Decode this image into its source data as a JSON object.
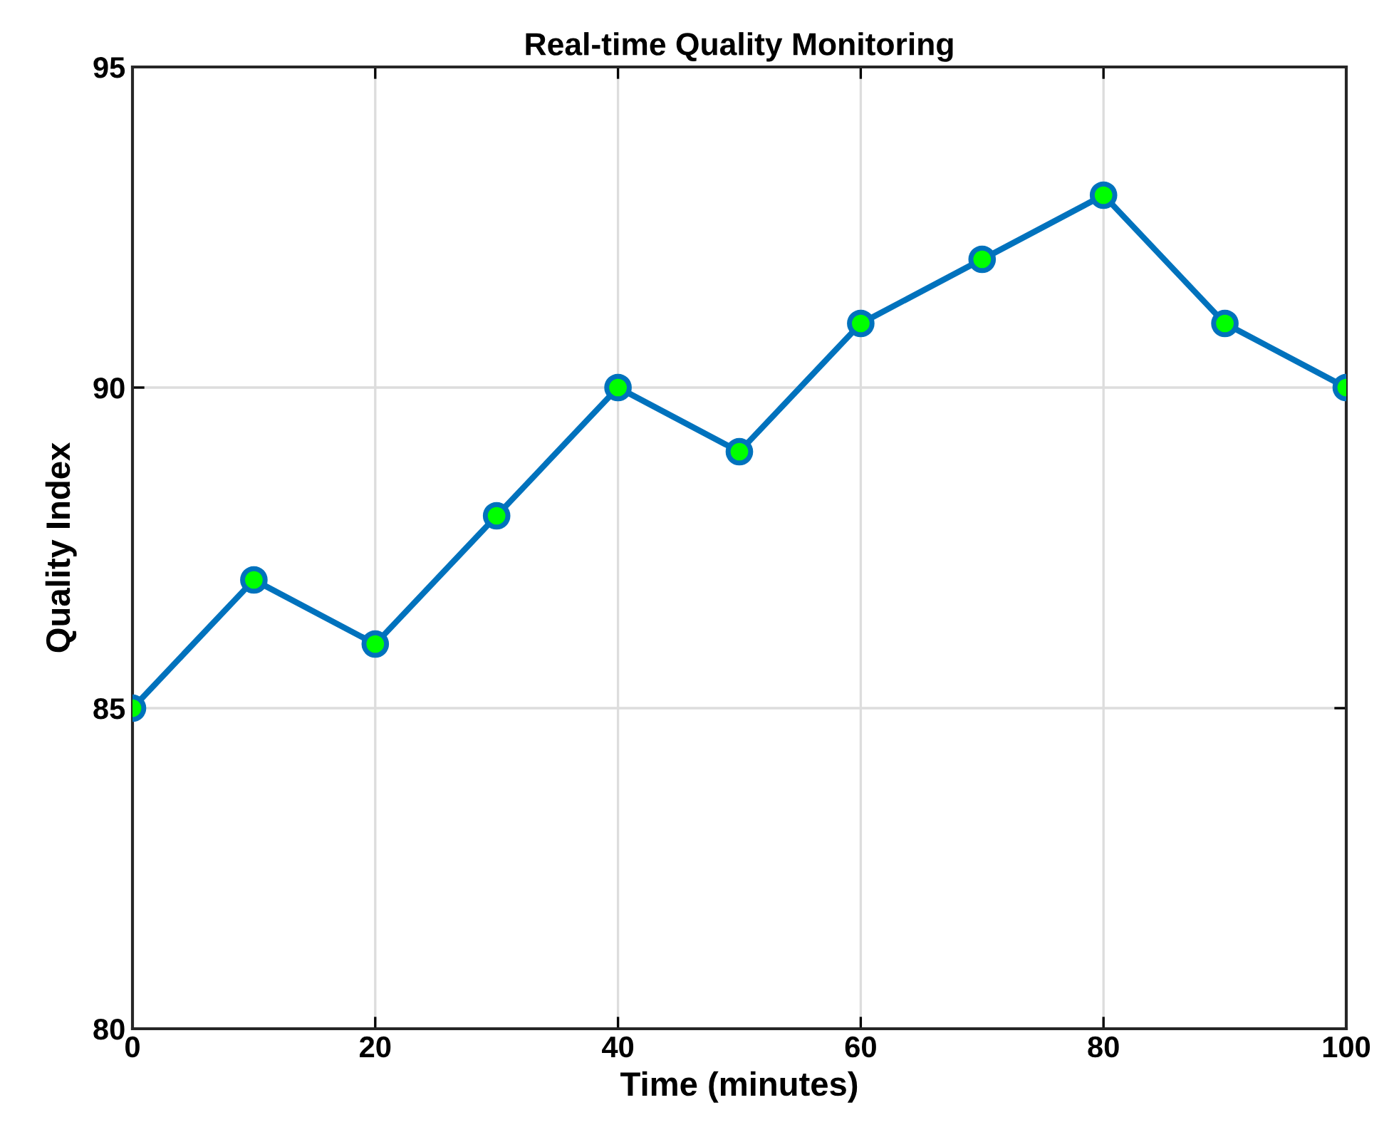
{
  "chart_data": {
    "type": "line",
    "title": "Real-time Quality Monitoring",
    "xlabel": "Time (minutes)",
    "ylabel": "Quality Index",
    "x": [
      0,
      10,
      20,
      30,
      40,
      50,
      60,
      70,
      80,
      90,
      100
    ],
    "series": [
      {
        "color": "#0072bd",
        "colors": [
          "#00ff00",
          "#00ff00",
          "#00ff00",
          "#00ff00",
          "#00ff00",
          "#00ff00",
          "#00ff00",
          "#00ff00",
          "#00ff00",
          "#00ff00",
          "#00ff00"
        ],
        "values": [
          85,
          87,
          86,
          88,
          90,
          89,
          91,
          92,
          93,
          91,
          90
        ]
      }
    ],
    "xlim": [
      0,
      100
    ],
    "xticks": [
      0,
      20,
      40,
      60,
      80,
      100
    ],
    "ylim": [
      80,
      95
    ],
    "yticks": [
      80,
      85,
      90,
      95
    ],
    "grid": true,
    "marker": "circle",
    "line_style": "solid"
  }
}
